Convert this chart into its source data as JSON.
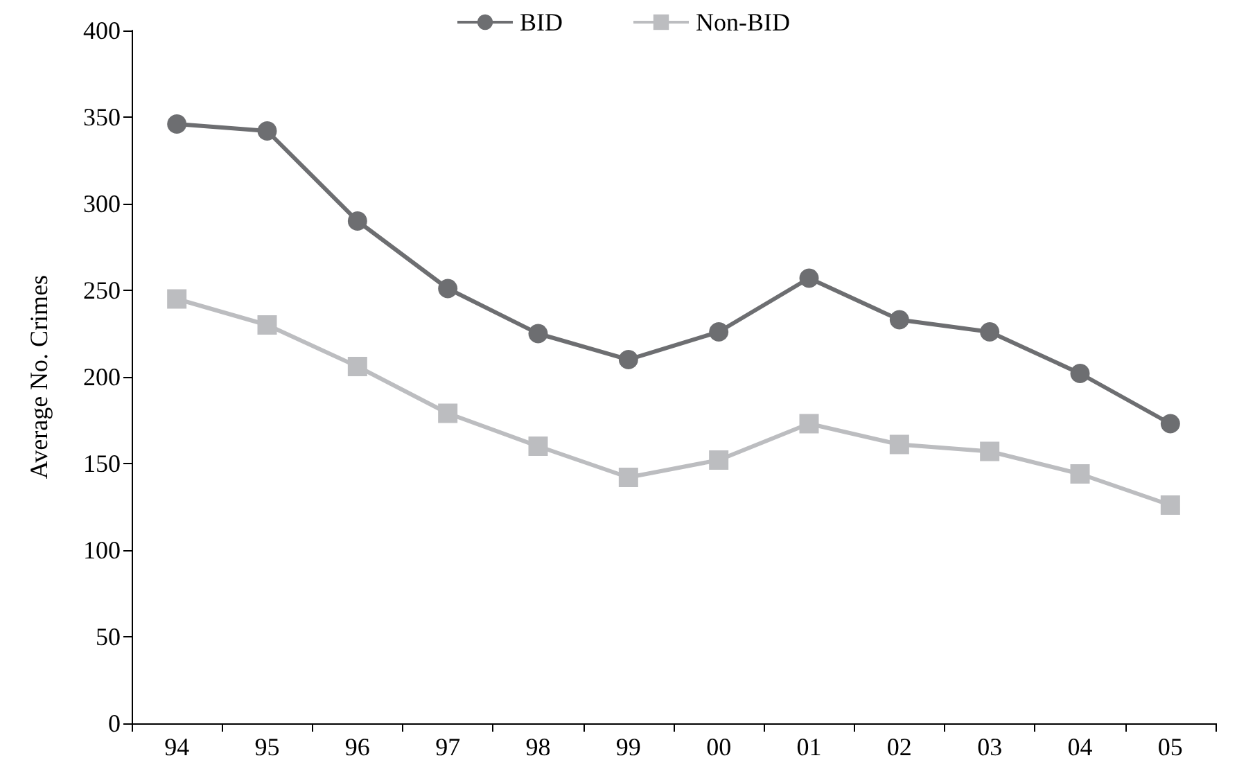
{
  "chart_data": {
    "type": "line",
    "ylabel": "Average No. Crimes",
    "categories": [
      "94",
      "95",
      "96",
      "97",
      "98",
      "99",
      "00",
      "01",
      "02",
      "03",
      "04",
      "05"
    ],
    "series": [
      {
        "name": "BID",
        "color": "#6d6e71",
        "marker": "circle",
        "values": [
          346,
          342,
          290,
          251,
          225,
          210,
          226,
          257,
          233,
          226,
          202,
          173
        ]
      },
      {
        "name": "Non-BID",
        "color": "#bcbdc0",
        "marker": "square",
        "values": [
          245,
          230,
          206,
          179,
          160,
          142,
          152,
          173,
          161,
          157,
          144,
          126
        ]
      }
    ],
    "ylim": [
      0,
      400
    ],
    "yticks": [
      0,
      50,
      100,
      150,
      200,
      250,
      300,
      350,
      400
    ],
    "grid": false,
    "legend": "top"
  }
}
